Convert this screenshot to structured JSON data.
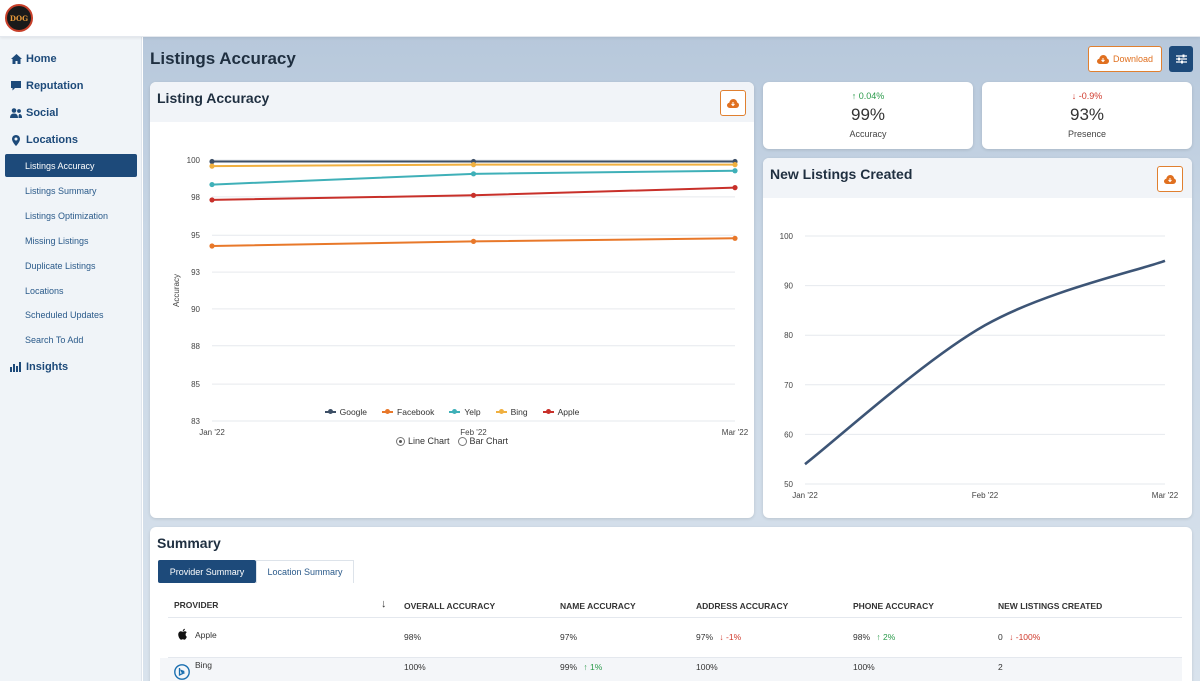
{
  "logo": {
    "text": "Dog House"
  },
  "sidebar": {
    "items": [
      {
        "label": "Home",
        "icon": "home-icon"
      },
      {
        "label": "Reputation",
        "icon": "comment-icon"
      },
      {
        "label": "Social",
        "icon": "users-icon"
      },
      {
        "label": "Locations",
        "icon": "map-pin-icon"
      },
      {
        "label": "Insights",
        "icon": "bar-chart-icon"
      }
    ],
    "location_subitems": [
      "Listings Accuracy",
      "Listings Summary",
      "Listings Optimization",
      "Missing Listings",
      "Duplicate Listings",
      "Locations",
      "Scheduled Updates",
      "Search To Add"
    ],
    "active_subitem": "Listings Accuracy"
  },
  "header": {
    "title": "Listings Accuracy",
    "download_label": "Download",
    "settings_icon": "sliders-icon"
  },
  "accuracy_card": {
    "title": "Listing Accuracy",
    "download_icon": "cloud-download-icon",
    "radio_options": [
      "Line Chart",
      "Bar Chart"
    ],
    "selected_option": "Line Chart"
  },
  "stats": [
    {
      "change": "0.04%",
      "direction": "up",
      "value": "99%",
      "label": "Accuracy"
    },
    {
      "change": "-0.9%",
      "direction": "down",
      "value": "93%",
      "label": "Presence"
    }
  ],
  "new_listings_card": {
    "title": "New Listings Created",
    "download_icon": "cloud-download-icon"
  },
  "chart_data": [
    {
      "type": "line",
      "x": [
        "Jan '22",
        "Feb '22",
        "Mar '22"
      ],
      "ylabel": "Accuracy",
      "ylim": [
        83,
        100
      ],
      "yticks": [
        "83",
        "85",
        "88",
        "90",
        "93",
        "95",
        "98",
        "100"
      ],
      "yticks_values": [
        83,
        85.4,
        87.9,
        90.3,
        92.7,
        95.1,
        97.6,
        100
      ],
      "legend_position": "bottom",
      "series": [
        {
          "name": "Google",
          "color": "#3d4f66",
          "values": [
            99.9,
            99.9,
            99.9
          ]
        },
        {
          "name": "Facebook",
          "color": "#e8782a",
          "values": [
            94.4,
            94.7,
            94.9
          ]
        },
        {
          "name": "Yelp",
          "color": "#3fb0b8",
          "values": [
            98.4,
            99.1,
            99.3
          ]
        },
        {
          "name": "Bing",
          "color": "#f0b040",
          "values": [
            99.6,
            99.7,
            99.7
          ]
        },
        {
          "name": "Apple",
          "color": "#c8302a",
          "values": [
            97.4,
            97.7,
            98.2
          ]
        }
      ]
    },
    {
      "type": "line",
      "x": [
        "Jan '22",
        "Feb '22",
        "Mar '22"
      ],
      "ylim": [
        50,
        100
      ],
      "yticks": [
        "50",
        "60",
        "70",
        "80",
        "90",
        "100"
      ],
      "yticks_values": [
        50,
        60,
        70,
        80,
        90,
        100
      ],
      "series": [
        {
          "color": "#3d5576",
          "values": [
            54,
            82,
            95
          ]
        }
      ]
    }
  ],
  "summary": {
    "title": "Summary",
    "tabs": [
      "Provider Summary",
      "Location Summary"
    ],
    "active_tab": "Provider Summary",
    "sort_icon": "arrow-down-icon",
    "columns": [
      "PROVIDER",
      "OVERALL ACCURACY",
      "NAME ACCURACY",
      "ADDRESS ACCURACY",
      "PHONE ACCURACY",
      "NEW LISTINGS CREATED"
    ],
    "rows": [
      {
        "provider": "Apple",
        "icon": "apple-icon",
        "overall": "98%",
        "name": "97%",
        "name_change": "",
        "name_dir": "",
        "address": "97%",
        "address_change": "-1%",
        "address_dir": "down",
        "phone": "98%",
        "phone_change": "2%",
        "phone_dir": "up",
        "new": "0",
        "new_change": "-100%",
        "new_dir": "down"
      },
      {
        "provider": "Bing",
        "icon": "bing-icon",
        "overall": "100%",
        "name": "99%",
        "name_change": "1%",
        "name_dir": "up",
        "address": "100%",
        "address_change": "",
        "address_dir": "",
        "phone": "100%",
        "phone_change": "",
        "phone_dir": "",
        "new": "2",
        "new_change": "",
        "new_dir": ""
      }
    ]
  }
}
